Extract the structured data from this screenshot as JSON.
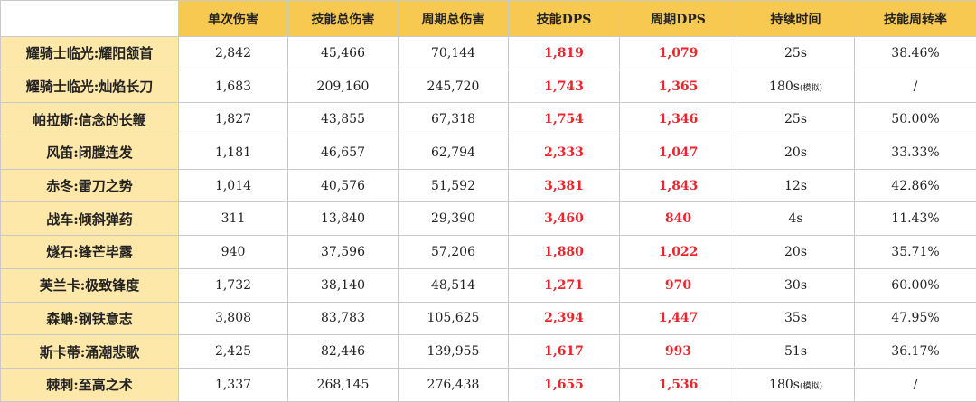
{
  "table": {
    "columns": [
      "单次伤害",
      "技能总伤害",
      "周期总伤害",
      "技能DPS",
      "周期DPS",
      "持续时间",
      "技能周转率"
    ],
    "rows": [
      {
        "name": "耀骑士临光:耀阳颔首",
        "cells": [
          "2,842",
          "45,466",
          "70,144",
          "1,819",
          "1,079",
          "25s",
          "38.46%"
        ]
      },
      {
        "name": "耀骑士临光:灿焰长刀",
        "cells": [
          "1,683",
          "209,160",
          "245,720",
          "1,743",
          "1,365",
          {
            "text": "180s",
            "note": "(模拟)"
          },
          "/"
        ]
      },
      {
        "name": "帕拉斯:信念的长鞭",
        "cells": [
          "1,827",
          "43,855",
          "67,318",
          "1,754",
          "1,346",
          "25s",
          "50.00%"
        ]
      },
      {
        "name": "风笛:闭膛连发",
        "cells": [
          "1,181",
          "46,657",
          "62,794",
          "2,333",
          "1,047",
          "20s",
          "33.33%"
        ]
      },
      {
        "name": "赤冬:雷刀之势",
        "cells": [
          "1,014",
          "40,576",
          "51,592",
          "3,381",
          "1,843",
          "12s",
          "42.86%"
        ]
      },
      {
        "name": "战车:倾斜弹药",
        "cells": [
          "311",
          "13,840",
          "29,390",
          "3,460",
          "840",
          "4s",
          "11.43%"
        ]
      },
      {
        "name": "燧石:锋芒毕露",
        "cells": [
          "940",
          "37,596",
          "57,206",
          "1,880",
          "1,022",
          "20s",
          "35.71%"
        ]
      },
      {
        "name": "芙兰卡:极致锋度",
        "cells": [
          "1,732",
          "38,140",
          "48,514",
          "1,271",
          "970",
          "30s",
          "60.00%"
        ]
      },
      {
        "name": "森蚺:钢铁意志",
        "cells": [
          "3,808",
          "83,783",
          "105,625",
          "2,394",
          "1,447",
          "35s",
          "47.95%"
        ]
      },
      {
        "name": "斯卡蒂:涌潮悲歌",
        "cells": [
          "2,425",
          "82,446",
          "139,955",
          "1,617",
          "993",
          "51s",
          "36.17%"
        ]
      },
      {
        "name": "棘刺:至高之术",
        "cells": [
          "1,337",
          "268,145",
          "276,438",
          "1,655",
          "1,536",
          {
            "text": "180s",
            "note": "(模拟)"
          },
          "/"
        ]
      }
    ],
    "highlight_columns": [
      3,
      4
    ]
  }
}
